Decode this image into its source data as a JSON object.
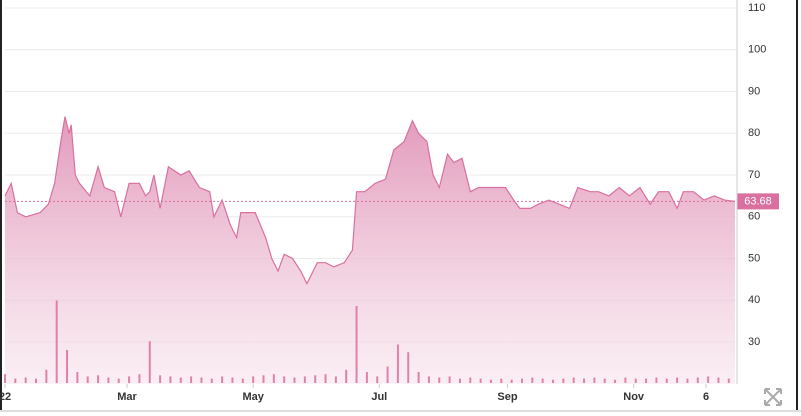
{
  "chart_data": {
    "type": "area",
    "xlim": [
      0,
      353
    ],
    "xticks": [
      {
        "value": 0,
        "label": "22"
      },
      {
        "value": 59,
        "label": "Mar"
      },
      {
        "value": 120,
        "label": "May"
      },
      {
        "value": 181,
        "label": "Jul"
      },
      {
        "value": 243,
        "label": "Sep"
      },
      {
        "value": 304,
        "label": "Nov"
      },
      {
        "value": 339,
        "label": "6"
      }
    ],
    "ylim": [
      20,
      110
    ],
    "yticks": [
      30,
      40,
      50,
      60,
      70,
      80,
      90,
      100,
      110
    ],
    "y2lim": [
      0,
      100
    ],
    "grid": true,
    "last_value": 63.68,
    "series": [
      {
        "color": "#d9709f",
        "x": [
          0,
          3,
          6,
          10,
          17,
          21,
          24,
          27,
          29,
          31,
          32,
          34,
          36,
          41,
          45,
          48,
          53,
          56,
          60,
          65,
          68,
          70,
          72,
          75,
          79,
          85,
          89,
          94,
          99,
          101,
          105,
          109,
          112,
          114,
          121,
          126,
          129,
          132,
          135,
          139,
          143,
          146,
          151,
          155,
          159,
          164,
          168,
          170,
          174,
          179,
          184,
          188,
          193,
          197,
          200,
          204,
          207,
          210,
          214,
          217,
          221,
          225,
          229,
          237,
          242,
          246,
          249,
          254,
          258,
          263,
          268,
          273,
          277,
          283,
          287,
          292,
          297,
          302,
          307,
          312,
          316,
          321,
          325,
          328,
          333,
          338,
          343,
          348,
          353
        ],
        "values": [
          65,
          68,
          61,
          60,
          61,
          63,
          68,
          78,
          84,
          80,
          82,
          70,
          68,
          65,
          72,
          67,
          66,
          60,
          68,
          68,
          65,
          66,
          70,
          62,
          72,
          70,
          71,
          67,
          66,
          60,
          64,
          58,
          55,
          61,
          61,
          55,
          50,
          47,
          51,
          50,
          47,
          44,
          49,
          49,
          48,
          49,
          52,
          66,
          66,
          68,
          69,
          76,
          78,
          83,
          80,
          78,
          70,
          67,
          75,
          73,
          74,
          66,
          67,
          67,
          67,
          64,
          62,
          62,
          63,
          64,
          63,
          62,
          67,
          66,
          66,
          65,
          67,
          65,
          67,
          63,
          66,
          66,
          62,
          66,
          66,
          64,
          65,
          64,
          63.68
        ]
      },
      {
        "type": "bar",
        "axis": "y2",
        "color": "#d9709f",
        "x": [
          0,
          5,
          10,
          15,
          20,
          25,
          30,
          35,
          40,
          45,
          50,
          55,
          60,
          65,
          70,
          75,
          80,
          85,
          90,
          95,
          100,
          105,
          110,
          115,
          120,
          125,
          130,
          135,
          140,
          145,
          150,
          155,
          160,
          165,
          170,
          175,
          180,
          185,
          190,
          195,
          200,
          205,
          210,
          215,
          220,
          225,
          230,
          235,
          240,
          245,
          250,
          255,
          260,
          265,
          270,
          275,
          280,
          285,
          290,
          295,
          300,
          305,
          310,
          315,
          320,
          325,
          330,
          335,
          340,
          345,
          350
        ],
        "values": [
          8,
          4,
          5,
          4,
          12,
          75,
          30,
          10,
          6,
          7,
          5,
          4,
          6,
          8,
          38,
          7,
          6,
          5,
          6,
          5,
          4,
          6,
          5,
          4,
          6,
          7,
          8,
          6,
          5,
          6,
          7,
          8,
          6,
          12,
          70,
          10,
          6,
          15,
          35,
          28,
          10,
          6,
          5,
          6,
          4,
          5,
          4,
          3,
          4,
          3,
          4,
          5,
          4,
          3,
          4,
          5,
          4,
          5,
          4,
          3,
          5,
          4,
          4,
          5,
          4,
          5,
          4,
          5,
          6,
          5,
          4
        ]
      }
    ]
  }
}
